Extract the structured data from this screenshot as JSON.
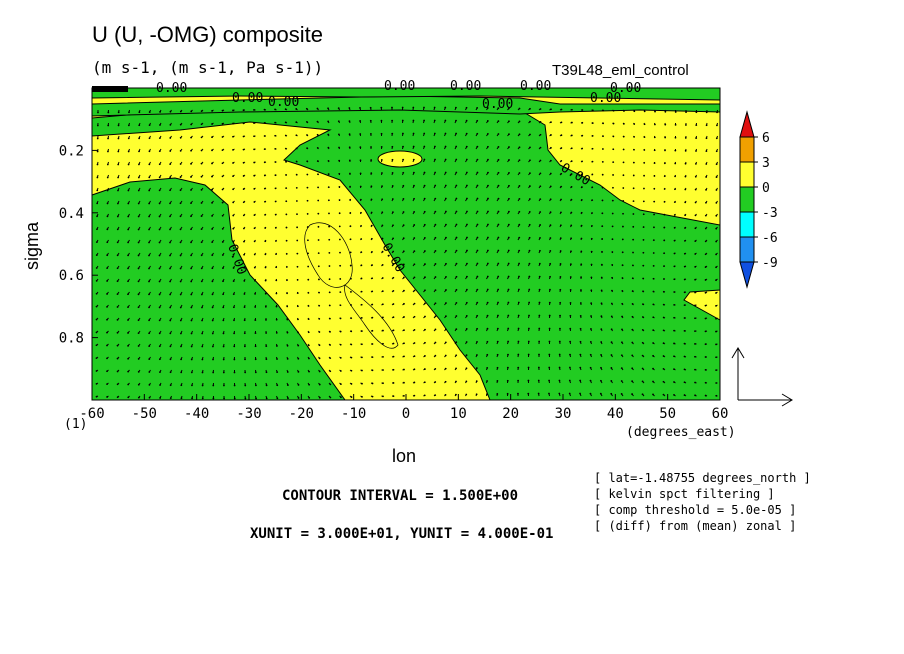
{
  "chart_data": {
    "type": "heatmap",
    "title": "U (U, -OMG) composite",
    "subtitle": "(m s-1, (m s-1, Pa s-1))",
    "run_label": "T39L48_eml_control",
    "xlabel": "lon",
    "xunits": "(degrees_east)",
    "ylabel": "sigma",
    "xlim": [
      -60,
      60
    ],
    "ylim": [
      0,
      1
    ],
    "y_inverted": true,
    "x_ticks": [
      "-60",
      "-50",
      "-40",
      "-30",
      "-20",
      "-10",
      "0",
      "10",
      "20",
      "30",
      "40",
      "50",
      "60"
    ],
    "x_tick_values": [
      -60,
      -50,
      -40,
      -30,
      -20,
      -10,
      0,
      10,
      20,
      30,
      40,
      50,
      60
    ],
    "y_ticks": [
      "0.2",
      "0.4",
      "0.6",
      "0.8"
    ],
    "y_tick_values": [
      0.2,
      0.4,
      0.6,
      0.8
    ],
    "corner_label": "(1)",
    "colorbar": {
      "levels": [
        "6",
        "3",
        "0",
        "-3",
        "-6",
        "-9"
      ],
      "colors": [
        "#e01010",
        "#f0a000",
        "#ffff30",
        "#22cc22",
        "#00ffff",
        "#2090f0",
        "#1050e0"
      ]
    },
    "contour_labels": [
      "0.00",
      "0.00",
      "0.00",
      "0.00",
      "0.00",
      "0.00",
      "0.00",
      "0.00",
      "0.00",
      "0.00",
      "0.00",
      "0.00"
    ],
    "contour_interval_text": "CONTOUR INTERVAL = 1.500E+00",
    "unit_text": "XUNIT = 3.000E+01, YUNIT = 4.000E-01",
    "notes": [
      "[ lat=-1.48755 degrees_north ]",
      "[ kelvin spct filtering ]",
      "[ comp threshold = 5.0e-05 ]",
      "[ (diff) from (mean) zonal ]"
    ],
    "colors": {
      "positive": "#ffff30",
      "negative": "#22cc22"
    }
  }
}
